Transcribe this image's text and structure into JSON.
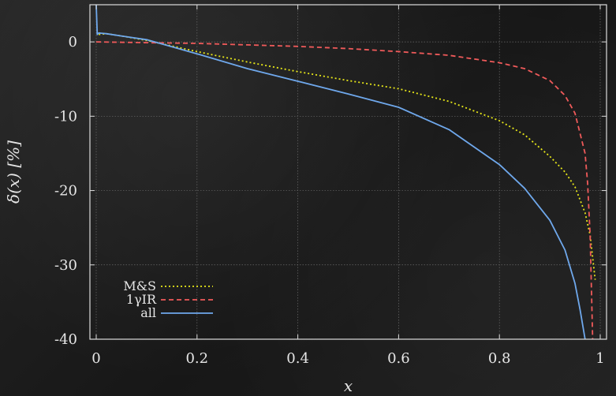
{
  "chart_data": {
    "type": "line",
    "xlabel": "x",
    "ylabel": "δ(x) [%]",
    "xlim": [
      0,
      1
    ],
    "ylim": [
      -40,
      5
    ],
    "xticks": [
      "0",
      "0.2",
      "0.4",
      "0.6",
      "0.8",
      "1"
    ],
    "xtick_values": [
      0,
      0.2,
      0.4,
      0.6,
      0.8,
      1
    ],
    "yticks": [
      "0",
      "-10",
      "-20",
      "-30",
      "-40"
    ],
    "ytick_values": [
      0,
      -10,
      -20,
      -30,
      -40
    ],
    "grid": true,
    "legend_position": "bottom-left",
    "series": [
      {
        "name": "M&S",
        "color": "#e6e619",
        "dash": "dotted",
        "x": [
          0.005,
          0.02,
          0.05,
          0.1,
          0.2,
          0.3,
          0.4,
          0.5,
          0.6,
          0.7,
          0.8,
          0.85,
          0.9,
          0.93,
          0.95,
          0.97,
          0.98,
          0.99
        ],
        "y": [
          1.0,
          1.1,
          0.8,
          0.2,
          -1.3,
          -2.7,
          -4.0,
          -5.2,
          -6.3,
          -8.0,
          -10.6,
          -12.5,
          -15.4,
          -17.5,
          -19.5,
          -23.0,
          -26.0,
          -32.0
        ]
      },
      {
        "name": "1γIR",
        "color": "#f05a5a",
        "dash": "dashed",
        "x": [
          0.0,
          0.1,
          0.2,
          0.3,
          0.4,
          0.5,
          0.6,
          0.7,
          0.8,
          0.85,
          0.9,
          0.93,
          0.95,
          0.97,
          0.975,
          0.98,
          0.985
        ],
        "y": [
          0.0,
          -0.1,
          -0.2,
          -0.4,
          -0.6,
          -0.9,
          -1.3,
          -1.8,
          -2.8,
          -3.6,
          -5.2,
          -7.2,
          -9.6,
          -15.0,
          -19.0,
          -26.0,
          -40.0
        ]
      },
      {
        "name": "all",
        "color": "#6fa8ec",
        "dash": "solid",
        "x": [
          0.0,
          0.002,
          0.005,
          0.02,
          0.05,
          0.1,
          0.2,
          0.3,
          0.4,
          0.5,
          0.6,
          0.7,
          0.8,
          0.85,
          0.9,
          0.93,
          0.95,
          0.96,
          0.97,
          0.98
        ],
        "y": [
          5.0,
          1.0,
          1.2,
          1.1,
          0.8,
          0.3,
          -1.6,
          -3.6,
          -5.3,
          -7.0,
          -8.8,
          -11.8,
          -16.5,
          -19.7,
          -24.0,
          -28.0,
          -32.5,
          -36.0,
          -40.0,
          -45.0
        ]
      }
    ]
  }
}
